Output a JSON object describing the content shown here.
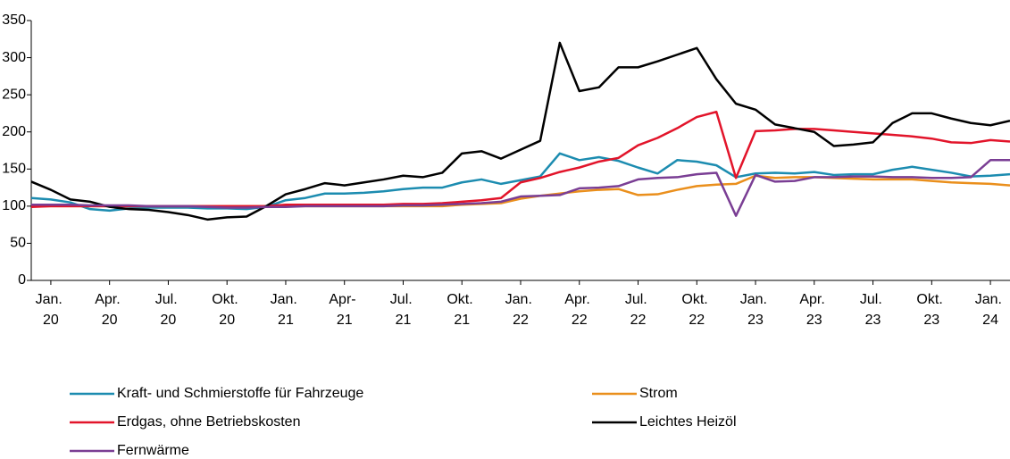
{
  "chart_data": {
    "type": "line",
    "categories": [
      null,
      "Jan. 20",
      null,
      null,
      "Apr. 20",
      null,
      null,
      "Jul. 20",
      null,
      null,
      "Okt. 20",
      null,
      null,
      "Jan. 21",
      null,
      null,
      "Apr- 21",
      null,
      null,
      "Jul. 21",
      null,
      null,
      "Okt. 21",
      null,
      null,
      "Jan. 22",
      null,
      null,
      "Apr. 22",
      null,
      null,
      "Jul. 22",
      null,
      null,
      "Okt. 22",
      null,
      null,
      "Jan. 23",
      null,
      null,
      "Apr. 23",
      null,
      null,
      "Jul. 23",
      null,
      null,
      "Okt. 23",
      null,
      null,
      "Jan. 24",
      null
    ],
    "series": [
      {
        "name": "Kraft- und Schmierstoffe für Fahrzeuge",
        "color": "#1c8cb0",
        "values": [
          111,
          109,
          105,
          96,
          94,
          97,
          98,
          98,
          98,
          97,
          97,
          96,
          99,
          108,
          111,
          117,
          117,
          118,
          120,
          123,
          125,
          125,
          132,
          136,
          130,
          135,
          140,
          171,
          162,
          166,
          161,
          152,
          144,
          162,
          160,
          155,
          139,
          144,
          145,
          144,
          146,
          142,
          143,
          143,
          149,
          153,
          149,
          145,
          140,
          141,
          143
        ]
      },
      {
        "name": "Strom",
        "color": "#ea8f1c",
        "values": [
          100,
          100,
          100,
          100,
          100,
          100,
          100,
          100,
          100,
          100,
          100,
          100,
          100,
          100,
          100,
          100,
          100,
          100,
          100,
          100,
          100,
          100,
          102,
          103,
          104,
          110,
          114,
          117,
          120,
          122,
          123,
          115,
          116,
          122,
          127,
          129,
          130,
          141,
          138,
          139,
          139,
          138,
          137,
          136,
          136,
          136,
          134,
          132,
          131,
          130,
          128
        ]
      },
      {
        "name": "Erdgas, ohne Betriebskosten",
        "color": "#e2142a",
        "values": [
          99,
          100,
          100,
          100,
          100,
          100,
          100,
          100,
          100,
          100,
          100,
          100,
          100,
          102,
          102,
          102,
          102,
          102,
          102,
          103,
          103,
          104,
          106,
          108,
          111,
          132,
          138,
          146,
          152,
          160,
          165,
          182,
          192,
          205,
          220,
          227,
          138,
          201,
          202,
          204,
          204,
          202,
          200,
          198,
          196,
          194,
          191,
          186,
          185,
          189,
          187
        ]
      },
      {
        "name": "Leichtes Heizöl",
        "color": "#000000",
        "values": [
          133,
          122,
          109,
          106,
          99,
          96,
          95,
          92,
          88,
          82,
          85,
          86,
          100,
          116,
          123,
          131,
          128,
          132,
          136,
          141,
          139,
          145,
          171,
          174,
          164,
          176,
          188,
          320,
          255,
          260,
          287,
          287,
          295,
          304,
          313,
          271,
          238,
          230,
          210,
          205,
          200,
          181,
          183,
          186,
          212,
          225,
          225,
          218,
          212,
          209,
          215
        ]
      },
      {
        "name": "Fernwärme",
        "color": "#7a3e94",
        "values": [
          102,
          102,
          102,
          101,
          101,
          101,
          100,
          100,
          100,
          99,
          98,
          98,
          99,
          99,
          100,
          100,
          100,
          100,
          100,
          101,
          101,
          102,
          103,
          104,
          106,
          113,
          114,
          115,
          124,
          125,
          127,
          136,
          138,
          139,
          143,
          145,
          87,
          142,
          133,
          134,
          139,
          139,
          140,
          140,
          139,
          139,
          138,
          138,
          139,
          162,
          162
        ]
      }
    ],
    "ylim": [
      0,
      350
    ],
    "yticks": [
      0,
      50,
      100,
      150,
      200,
      250,
      300,
      350
    ]
  }
}
